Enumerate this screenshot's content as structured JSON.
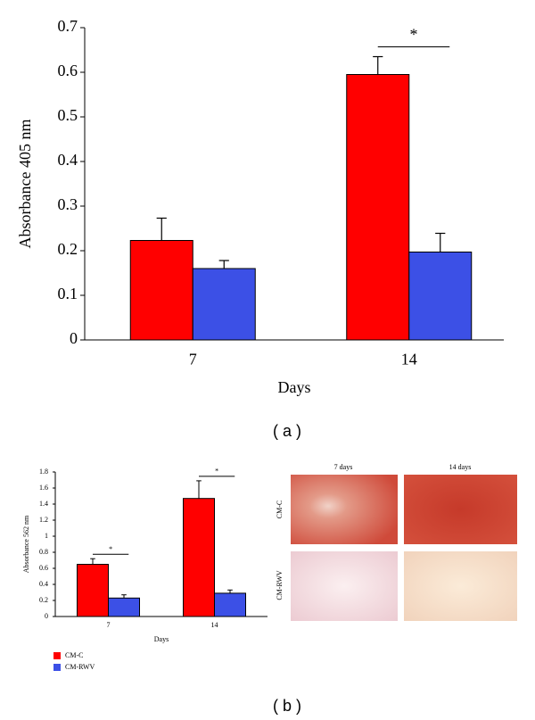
{
  "chart_data": [
    {
      "type": "bar",
      "y_label": "Absorbance 405 nm",
      "x_label": "Days",
      "categories": [
        "7",
        "14"
      ],
      "series": [
        {
          "color": "#ff0000",
          "values": [
            0.223,
            0.595
          ],
          "errors": [
            0.05,
            0.04
          ]
        },
        {
          "color": "#3c50e6",
          "values": [
            0.16,
            0.197
          ],
          "errors": [
            0.018,
            0.042
          ]
        }
      ],
      "ylim": [
        0,
        0.7
      ],
      "yticks": [
        0,
        0.1,
        0.2,
        0.3,
        0.4,
        0.5,
        0.6,
        0.7
      ],
      "annotations": [
        {
          "text": "*",
          "category": 1
        }
      ]
    },
    {
      "type": "bar",
      "y_label": "Absorbance 562 nm",
      "x_label": "Days",
      "categories": [
        "7",
        "14"
      ],
      "series": [
        {
          "name": "CM-C",
          "color": "#ff0000",
          "values": [
            0.65,
            1.47
          ],
          "errors": [
            0.07,
            0.22
          ]
        },
        {
          "name": "CM-RWV",
          "color": "#3c50e6",
          "values": [
            0.23,
            0.29
          ],
          "errors": [
            0.04,
            0.04
          ]
        }
      ],
      "ylim": [
        0,
        1.8
      ],
      "yticks": [
        0,
        0.2,
        0.4,
        0.6,
        0.8,
        1,
        1.2,
        1.4,
        1.6,
        1.8
      ],
      "annotations": [
        {
          "text": "*",
          "category": 0
        },
        {
          "text": "*",
          "category": 1
        }
      ]
    }
  ],
  "figure": {
    "panel_labels": [
      "( a )",
      "( b )"
    ],
    "image_grid": {
      "columns": [
        "7 days",
        "14 days"
      ],
      "rows": [
        "CM-C",
        "CM-RWV"
      ]
    }
  }
}
